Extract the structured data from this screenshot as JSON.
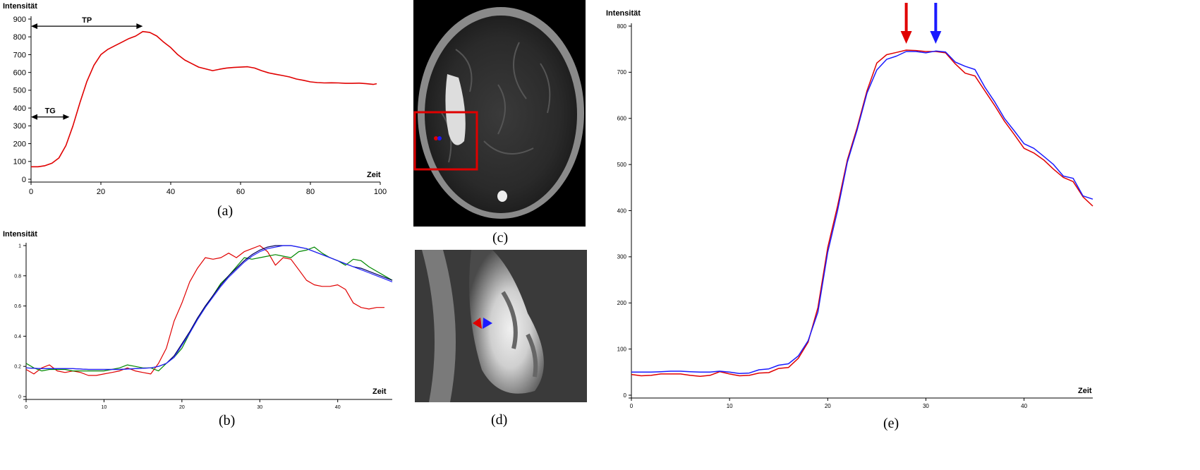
{
  "captions": {
    "a": "(a)",
    "b": "(b)",
    "c": "(c)",
    "d": "(d)",
    "e": "(e)"
  },
  "chart_data": [
    {
      "id": "a",
      "type": "line",
      "ylabel": "Intensität",
      "xlabel": "Zeit",
      "xlim": [
        0,
        100
      ],
      "ylim": [
        0,
        900
      ],
      "xticks": [
        0,
        20,
        40,
        60,
        80,
        100
      ],
      "yticks": [
        0,
        100,
        200,
        300,
        400,
        500,
        600,
        700,
        800,
        900
      ],
      "annotations": [
        {
          "label": "TP",
          "from": 0,
          "to": 32,
          "y": 860
        },
        {
          "label": "TG",
          "from": 0,
          "to": 11,
          "y": 350
        }
      ],
      "series": [
        {
          "color": "#e00000",
          "x": [
            0,
            2,
            4,
            6,
            8,
            10,
            12,
            14,
            16,
            18,
            20,
            22,
            24,
            26,
            28,
            30,
            32,
            34,
            36,
            38,
            40,
            42,
            44,
            46,
            48,
            50,
            52,
            54,
            56,
            58,
            60,
            62,
            64,
            66,
            68,
            70,
            72,
            74,
            76,
            78,
            80,
            82,
            84,
            86,
            88,
            90,
            92,
            94,
            96,
            98,
            99
          ],
          "y": [
            70,
            70,
            76,
            90,
            120,
            190,
            300,
            430,
            550,
            640,
            700,
            730,
            750,
            770,
            790,
            805,
            830,
            825,
            805,
            770,
            740,
            700,
            670,
            650,
            630,
            620,
            610,
            618,
            625,
            628,
            630,
            632,
            625,
            610,
            598,
            590,
            583,
            575,
            563,
            556,
            547,
            543,
            541,
            542,
            541,
            539,
            539,
            540,
            537,
            533,
            537
          ]
        }
      ]
    },
    {
      "id": "b",
      "type": "line",
      "ylabel": "Intensität",
      "xlabel": "Zeit",
      "xlim": [
        0,
        47
      ],
      "ylim": [
        0,
        1
      ],
      "xticks": [
        0,
        10,
        20,
        30,
        40
      ],
      "yticks": [
        0,
        0.2,
        0.4,
        0.6,
        0.8,
        1
      ],
      "series": [
        {
          "color": "#e00000",
          "x": [
            0,
            1,
            2,
            3,
            4,
            5,
            6,
            7,
            8,
            9,
            10,
            11,
            12,
            13,
            14,
            15,
            16,
            17,
            18,
            19,
            20,
            21,
            22,
            23,
            24,
            25,
            26,
            27,
            28,
            29,
            30,
            31,
            32,
            33,
            34,
            35,
            36,
            37,
            38,
            39,
            40,
            41,
            42,
            43,
            44,
            45,
            46
          ],
          "y": [
            0.18,
            0.15,
            0.19,
            0.21,
            0.17,
            0.16,
            0.17,
            0.16,
            0.14,
            0.14,
            0.15,
            0.16,
            0.17,
            0.19,
            0.17,
            0.16,
            0.15,
            0.22,
            0.32,
            0.5,
            0.62,
            0.76,
            0.85,
            0.92,
            0.91,
            0.92,
            0.95,
            0.92,
            0.96,
            0.98,
            1.0,
            0.96,
            0.87,
            0.92,
            0.91,
            0.84,
            0.77,
            0.74,
            0.73,
            0.73,
            0.74,
            0.71,
            0.62,
            0.59,
            0.58,
            0.59,
            0.59
          ]
        },
        {
          "color": "#008800",
          "x": [
            0,
            1,
            2,
            3,
            4,
            5,
            6,
            7,
            8,
            9,
            10,
            11,
            12,
            13,
            14,
            15,
            16,
            17,
            18,
            19,
            20,
            21,
            22,
            23,
            24,
            25,
            26,
            27,
            28,
            29,
            30,
            31,
            32,
            33,
            34,
            35,
            36,
            37,
            38,
            39,
            40,
            41,
            42,
            43,
            44,
            45,
            46,
            47
          ],
          "y": [
            0.22,
            0.19,
            0.17,
            0.18,
            0.18,
            0.18,
            0.17,
            0.17,
            0.17,
            0.17,
            0.17,
            0.18,
            0.19,
            0.21,
            0.2,
            0.19,
            0.19,
            0.17,
            0.22,
            0.26,
            0.32,
            0.42,
            0.51,
            0.59,
            0.67,
            0.75,
            0.8,
            0.86,
            0.92,
            0.91,
            0.92,
            0.93,
            0.94,
            0.93,
            0.92,
            0.96,
            0.97,
            0.99,
            0.95,
            0.92,
            0.9,
            0.87,
            0.91,
            0.9,
            0.86,
            0.83,
            0.8,
            0.77
          ]
        },
        {
          "color": "#000060",
          "x": [
            0,
            2,
            4,
            6,
            8,
            10,
            12,
            14,
            16,
            17,
            18,
            19,
            20,
            21,
            22,
            23,
            24,
            25,
            26,
            27,
            28,
            29,
            30,
            31,
            32,
            33,
            34,
            35,
            36,
            37,
            38,
            39,
            40,
            41,
            42,
            43,
            44,
            45,
            46,
            47
          ],
          "y": [
            0.19,
            0.185,
            0.185,
            0.185,
            0.18,
            0.18,
            0.18,
            0.185,
            0.19,
            0.2,
            0.22,
            0.27,
            0.35,
            0.43,
            0.52,
            0.6,
            0.67,
            0.74,
            0.8,
            0.85,
            0.9,
            0.94,
            0.97,
            0.99,
            1.0,
            1.0,
            1.0,
            0.99,
            0.98,
            0.96,
            0.94,
            0.92,
            0.9,
            0.88,
            0.86,
            0.85,
            0.83,
            0.81,
            0.79,
            0.77
          ]
        },
        {
          "color": "#2222ff",
          "x": [
            0,
            2,
            4,
            6,
            8,
            10,
            12,
            14,
            16,
            17,
            18,
            19,
            20,
            21,
            22,
            23,
            24,
            25,
            26,
            27,
            28,
            29,
            30,
            31,
            32,
            33,
            34,
            35,
            36,
            37,
            38,
            39,
            40,
            41,
            42,
            43,
            44,
            45,
            46,
            47
          ],
          "y": [
            0.19,
            0.185,
            0.185,
            0.185,
            0.18,
            0.18,
            0.18,
            0.185,
            0.19,
            0.2,
            0.22,
            0.26,
            0.34,
            0.42,
            0.51,
            0.59,
            0.66,
            0.73,
            0.79,
            0.84,
            0.89,
            0.93,
            0.96,
            0.98,
            0.99,
            1.0,
            1.0,
            0.99,
            0.98,
            0.96,
            0.94,
            0.92,
            0.9,
            0.88,
            0.86,
            0.84,
            0.82,
            0.8,
            0.78,
            0.76
          ]
        }
      ]
    },
    {
      "id": "e",
      "type": "line",
      "ylabel": "Intensität",
      "xlabel": "Zeit",
      "xlim": [
        0,
        47
      ],
      "ylim": [
        0,
        800
      ],
      "xticks": [
        0,
        10,
        20,
        30,
        40
      ],
      "yticks": [
        0,
        100,
        200,
        300,
        400,
        500,
        600,
        700,
        800
      ],
      "arrows": [
        {
          "x": 28,
          "color": "#e00000"
        },
        {
          "x": 31,
          "color": "#1a1aff"
        }
      ],
      "series": [
        {
          "color": "#e00000",
          "x": [
            0,
            1,
            2,
            3,
            4,
            5,
            6,
            7,
            8,
            9,
            10,
            11,
            12,
            13,
            14,
            15,
            16,
            17,
            18,
            19,
            20,
            21,
            22,
            23,
            24,
            25,
            26,
            27,
            28,
            29,
            30,
            31,
            32,
            33,
            34,
            35,
            36,
            37,
            38,
            39,
            40,
            41,
            42,
            43,
            44,
            45,
            46,
            47
          ],
          "y": [
            45,
            42,
            43,
            46,
            46,
            46,
            43,
            41,
            43,
            51,
            46,
            42,
            43,
            48,
            49,
            58,
            60,
            80,
            115,
            190,
            320,
            410,
            510,
            580,
            660,
            720,
            738,
            743,
            748,
            747,
            745,
            745,
            742,
            718,
            698,
            692,
            660,
            628,
            594,
            565,
            535,
            525,
            510,
            490,
            472,
            463,
            430,
            410
          ]
        },
        {
          "color": "#1a1aff",
          "x": [
            0,
            1,
            2,
            3,
            4,
            5,
            6,
            7,
            8,
            9,
            10,
            11,
            12,
            13,
            14,
            15,
            16,
            17,
            18,
            19,
            20,
            21,
            22,
            23,
            24,
            25,
            26,
            27,
            28,
            29,
            30,
            31,
            32,
            33,
            34,
            35,
            36,
            37,
            38,
            39,
            40,
            41,
            42,
            43,
            44,
            45,
            46,
            47
          ],
          "y": [
            50,
            50,
            50,
            51,
            52,
            52,
            51,
            50,
            50,
            52,
            50,
            47,
            48,
            55,
            57,
            65,
            68,
            85,
            118,
            180,
            310,
            400,
            505,
            575,
            655,
            705,
            728,
            735,
            745,
            745,
            742,
            746,
            744,
            722,
            713,
            706,
            668,
            636,
            600,
            573,
            545,
            535,
            518,
            500,
            475,
            470,
            432,
            425
          ]
        }
      ]
    }
  ]
}
